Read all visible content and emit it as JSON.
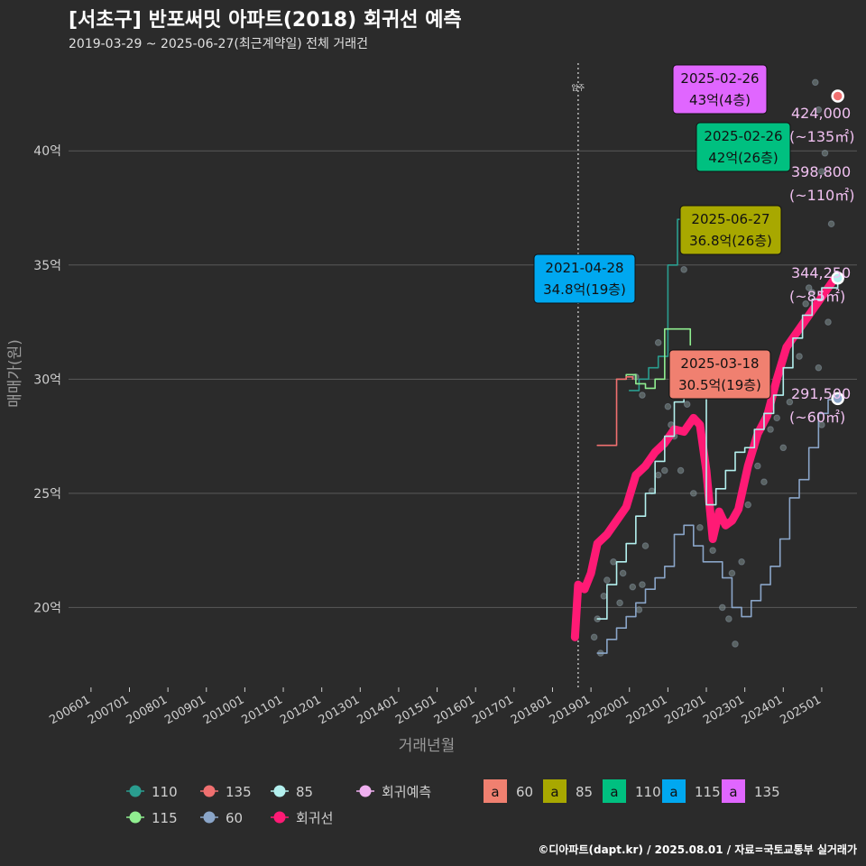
{
  "title": "[서초구] 반포써밋 아파트(2018) 회귀선 예측",
  "subtitle": "2019-03-29 ~ 2025-06-27(최근계약일) 전체 거래건",
  "source": "©디아파트(dapt.kr) / 2025.08.01 / 자료=국토교통부 실거래가",
  "colors": {
    "background": "#2b2b2b",
    "grid": "#5a5a5a",
    "text": "#cfcfcf",
    "regression": "#ff1a75",
    "area_60": "#8aa5c8",
    "area_85": "#b3f0ee",
    "area_110": "#2a9d8f",
    "area_115": "#90ee90",
    "area_135": "#f07070",
    "forecast": "#f0b0f0"
  },
  "chart_data": {
    "type": "line",
    "xlabel": "거래년월",
    "ylabel": "매매가(원)",
    "x_ticks": [
      "200601",
      "200701",
      "200801",
      "200901",
      "201001",
      "201101",
      "201201",
      "201301",
      "201401",
      "201501",
      "201601",
      "201701",
      "201801",
      "201901",
      "202001",
      "202101",
      "202201",
      "202301",
      "202401",
      "202501"
    ],
    "y_ticks": [
      {
        "value": 20,
        "label": "20억"
      },
      {
        "value": 25,
        "label": "25억"
      },
      {
        "value": 30,
        "label": "30억"
      },
      {
        "value": 35,
        "label": "35억"
      },
      {
        "value": 40,
        "label": "40억"
      }
    ],
    "x_range": [
      "2005-06",
      "2025-12"
    ],
    "y_range": [
      16.5,
      44
    ],
    "move_in": {
      "date": "2018-09",
      "label": "입주"
    },
    "series": [
      {
        "name": "회귀선",
        "key": "regression",
        "points": [
          [
            "2018-08",
            18.7
          ],
          [
            "2018-09",
            21.0
          ],
          [
            "2018-11",
            20.8
          ],
          [
            "2019-01",
            21.5
          ],
          [
            "2019-03",
            22.8
          ],
          [
            "2019-06",
            23.2
          ],
          [
            "2019-09",
            23.8
          ],
          [
            "2019-12",
            24.4
          ],
          [
            "2020-03",
            25.8
          ],
          [
            "2020-06",
            26.2
          ],
          [
            "2020-09",
            26.8
          ],
          [
            "2020-12",
            27.2
          ],
          [
            "2021-03",
            27.8
          ],
          [
            "2021-06",
            27.7
          ],
          [
            "2021-09",
            28.3
          ],
          [
            "2021-11",
            28.0
          ],
          [
            "2022-01",
            26.0
          ],
          [
            "2022-03",
            23.0
          ],
          [
            "2022-05",
            24.2
          ],
          [
            "2022-07",
            23.6
          ],
          [
            "2022-09",
            23.8
          ],
          [
            "2022-11",
            24.3
          ],
          [
            "2023-02",
            26.2
          ],
          [
            "2023-05",
            27.6
          ],
          [
            "2023-08",
            28.4
          ],
          [
            "2023-11",
            30.0
          ],
          [
            "2024-02",
            31.4
          ],
          [
            "2024-05",
            32.0
          ],
          [
            "2024-08",
            32.6
          ],
          [
            "2024-11",
            33.2
          ],
          [
            "2025-02",
            33.8
          ],
          [
            "2025-05",
            34.4
          ]
        ]
      },
      {
        "name": "60",
        "key": "area_60",
        "points": [
          [
            "2019-03",
            18.0
          ],
          [
            "2019-06",
            18.6
          ],
          [
            "2019-09",
            19.1
          ],
          [
            "2019-12",
            19.6
          ],
          [
            "2020-03",
            20.2
          ],
          [
            "2020-06",
            20.8
          ],
          [
            "2020-09",
            21.3
          ],
          [
            "2020-12",
            21.8
          ],
          [
            "2021-03",
            23.2
          ],
          [
            "2021-06",
            23.6
          ],
          [
            "2021-09",
            22.7
          ],
          [
            "2021-12",
            22.0
          ],
          [
            "2022-03",
            22.0
          ],
          [
            "2022-06",
            21.3
          ],
          [
            "2022-09",
            20.0
          ],
          [
            "2022-12",
            19.6
          ],
          [
            "2023-03",
            20.3
          ],
          [
            "2023-06",
            21.0
          ],
          [
            "2023-09",
            21.8
          ],
          [
            "2023-12",
            23.0
          ],
          [
            "2024-03",
            24.8
          ],
          [
            "2024-06",
            25.6
          ],
          [
            "2024-09",
            27.0
          ],
          [
            "2024-12",
            28.5
          ],
          [
            "2025-03",
            29.1
          ],
          [
            "2025-06",
            29.15
          ]
        ]
      },
      {
        "name": "85",
        "key": "area_85",
        "points": [
          [
            "2019-03",
            19.5
          ],
          [
            "2019-06",
            21.0
          ],
          [
            "2019-09",
            22.0
          ],
          [
            "2019-12",
            22.8
          ],
          [
            "2020-03",
            24.0
          ],
          [
            "2020-06",
            25.0
          ],
          [
            "2020-09",
            26.4
          ],
          [
            "2020-12",
            27.5
          ],
          [
            "2021-03",
            29.0
          ],
          [
            "2021-06",
            30.0
          ],
          [
            "2021-09",
            30.7
          ],
          [
            "2021-11",
            31.0
          ],
          [
            "2022-01",
            24.5
          ],
          [
            "2022-04",
            25.2
          ],
          [
            "2022-07",
            26.0
          ],
          [
            "2022-10",
            26.8
          ],
          [
            "2023-01",
            27.0
          ],
          [
            "2023-04",
            27.8
          ],
          [
            "2023-07",
            28.5
          ],
          [
            "2023-10",
            29.3
          ],
          [
            "2024-01",
            30.5
          ],
          [
            "2024-04",
            31.8
          ],
          [
            "2024-07",
            32.8
          ],
          [
            "2024-10",
            33.5
          ],
          [
            "2025-01",
            34.0
          ],
          [
            "2025-06",
            34.43
          ]
        ]
      },
      {
        "name": "110",
        "key": "area_110",
        "points": [
          [
            "2020-01",
            29.5
          ],
          [
            "2020-04",
            30.0
          ],
          [
            "2020-07",
            30.5
          ],
          [
            "2020-10",
            31.0
          ],
          [
            "2021-01",
            35.0
          ],
          [
            "2021-04",
            37.0
          ],
          [
            "2021-08",
            37.0
          ]
        ]
      },
      {
        "name": "115",
        "key": "area_115",
        "points": [
          [
            "2019-09",
            30.0
          ],
          [
            "2019-12",
            30.2
          ],
          [
            "2020-03",
            29.8
          ],
          [
            "2020-06",
            29.6
          ],
          [
            "2020-09",
            30.0
          ],
          [
            "2020-12",
            32.2
          ],
          [
            "2021-03",
            32.2
          ],
          [
            "2021-06",
            32.2
          ],
          [
            "2021-08",
            31.5
          ]
        ]
      },
      {
        "name": "135",
        "key": "area_135",
        "points": [
          [
            "2019-03",
            27.1
          ],
          [
            "2019-06",
            27.1
          ],
          [
            "2019-09",
            30.0
          ],
          [
            "2019-12",
            30.1
          ],
          [
            "2020-02",
            30.0
          ]
        ]
      },
      {
        "name": "회귀예측",
        "key": "forecast",
        "points": []
      }
    ],
    "points": [
      [
        "2019-02",
        18.7
      ],
      [
        "2019-03",
        19.5
      ],
      [
        "2019-04",
        18.0
      ],
      [
        "2019-05",
        20.5
      ],
      [
        "2019-06",
        21.2
      ],
      [
        "2019-08",
        22.0
      ],
      [
        "2019-10",
        20.2
      ],
      [
        "2019-11",
        21.5
      ],
      [
        "2020-02",
        20.9
      ],
      [
        "2020-04",
        19.9
      ],
      [
        "2020-05",
        21.0
      ],
      [
        "2020-06",
        22.7
      ],
      [
        "2020-08",
        25.1
      ],
      [
        "2020-10",
        25.8
      ],
      [
        "2020-12",
        26.0
      ],
      [
        "2021-02",
        28.0
      ],
      [
        "2021-03",
        27.5
      ],
      [
        "2021-05",
        26.0
      ],
      [
        "2021-07",
        28.9
      ],
      [
        "2021-09",
        25.0
      ],
      [
        "2021-11",
        23.5
      ],
      [
        "2022-03",
        22.5
      ],
      [
        "2022-06",
        20.0
      ],
      [
        "2022-08",
        19.5
      ],
      [
        "2022-09",
        21.5
      ],
      [
        "2022-10",
        18.4
      ],
      [
        "2022-12",
        22.0
      ],
      [
        "2023-02",
        24.5
      ],
      [
        "2023-04",
        27.0
      ],
      [
        "2023-05",
        26.2
      ],
      [
        "2023-07",
        25.5
      ],
      [
        "2023-09",
        27.8
      ],
      [
        "2023-11",
        28.3
      ],
      [
        "2024-01",
        27.0
      ],
      [
        "2024-03",
        29.0
      ],
      [
        "2024-05",
        32.0
      ],
      [
        "2024-06",
        31.0
      ],
      [
        "2024-08",
        33.3
      ],
      [
        "2024-09",
        34.0
      ],
      [
        "2024-10",
        33.8
      ],
      [
        "2024-12",
        30.5
      ],
      [
        "2025-01",
        28.0
      ],
      [
        "2025-03",
        32.5
      ],
      [
        "2025-04",
        36.8
      ],
      [
        "2024-11",
        43.0
      ],
      [
        "2024-12",
        41.8
      ],
      [
        "2025-01",
        39.1
      ],
      [
        "2025-02",
        39.9
      ],
      [
        "2020-10",
        31.6
      ],
      [
        "2021-06",
        34.8
      ],
      [
        "2020-05",
        29.3
      ],
      [
        "2020-03",
        30.1
      ],
      [
        "2021-01",
        28.8
      ]
    ],
    "annotations": [
      {
        "date": "2025-02-26",
        "price": "43억(4층)",
        "area": "135",
        "color": "#e066ff"
      },
      {
        "date": "2025-02-26",
        "price": "42억(26층)",
        "area": "110",
        "color": "#00c080"
      },
      {
        "date": "2025-06-27",
        "price": "36.8억(26층)",
        "area": "85",
        "color": "#a8a800"
      },
      {
        "date": "2021-04-28",
        "price": "34.8억(19층)",
        "area": "115",
        "color": "#00a8f0"
      },
      {
        "date": "2025-03-18",
        "price": "30.5억(19층)",
        "area": "60",
        "color": "#f08070"
      }
    ],
    "end_labels": [
      {
        "value": "424,000",
        "area": "(~135㎡)"
      },
      {
        "value": "398,800",
        "area": "(~110㎡)"
      },
      {
        "value": "344,250",
        "area": "(~85㎡)"
      },
      {
        "value": "291,500",
        "area": "(~60㎡)"
      }
    ],
    "legend": {
      "placement": "bottom",
      "lines": [
        "110",
        "135",
        "85",
        "회귀예측",
        "115",
        "60",
        "회귀선"
      ],
      "boxes": [
        {
          "label": "60",
          "color": "#f08070"
        },
        {
          "label": "85",
          "color": "#a8a800"
        },
        {
          "label": "110",
          "color": "#00c080"
        },
        {
          "label": "115",
          "color": "#00a8f0"
        },
        {
          "label": "135",
          "color": "#e066ff"
        }
      ],
      "box_glyph": "a"
    }
  }
}
